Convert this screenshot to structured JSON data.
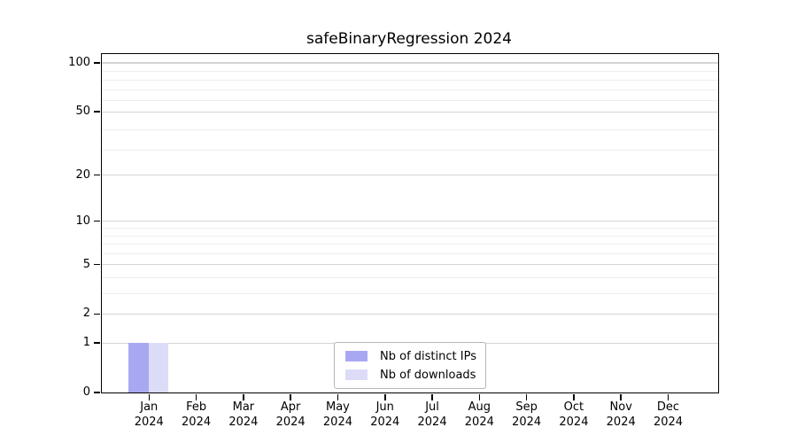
{
  "chart_data": {
    "type": "bar",
    "title": "safeBinaryRegression 2024",
    "categories": [
      "Jan 2024",
      "Feb 2024",
      "Mar 2024",
      "Apr 2024",
      "May 2024",
      "Jun 2024",
      "Jul 2024",
      "Aug 2024",
      "Sep 2024",
      "Oct 2024",
      "Nov 2024",
      "Dec 2024"
    ],
    "months": [
      "Jan",
      "Feb",
      "Mar",
      "Apr",
      "May",
      "Jun",
      "Jul",
      "Aug",
      "Sep",
      "Oct",
      "Nov",
      "Dec"
    ],
    "year": "2024",
    "series": [
      {
        "name": "Nb of distinct IPs",
        "color": "#a8a8f2",
        "values": [
          1,
          0,
          0,
          0,
          0,
          0,
          0,
          0,
          0,
          0,
          0,
          0
        ]
      },
      {
        "name": "Nb of downloads",
        "color": "#dcdcf8",
        "values": [
          1,
          0,
          0,
          0,
          0,
          0,
          0,
          0,
          0,
          0,
          0,
          0
        ]
      }
    ],
    "xlabel": "",
    "ylabel": "",
    "y_scale": "log1p",
    "ylim": [
      0,
      113.4
    ],
    "y_ticks": [
      0,
      1,
      2,
      5,
      10,
      20,
      50,
      100
    ],
    "y_minor_gridlines": [
      3,
      4,
      6,
      7,
      8,
      9,
      29,
      39,
      59,
      69,
      79,
      89
    ],
    "grid": true,
    "legend_position": "lower center",
    "colors": {
      "axis": "#000000",
      "grid_major": "#d4d4d4",
      "grid_minor": "#ededed",
      "legend_border": "#b5b5b5",
      "background": "#ffffff"
    }
  }
}
